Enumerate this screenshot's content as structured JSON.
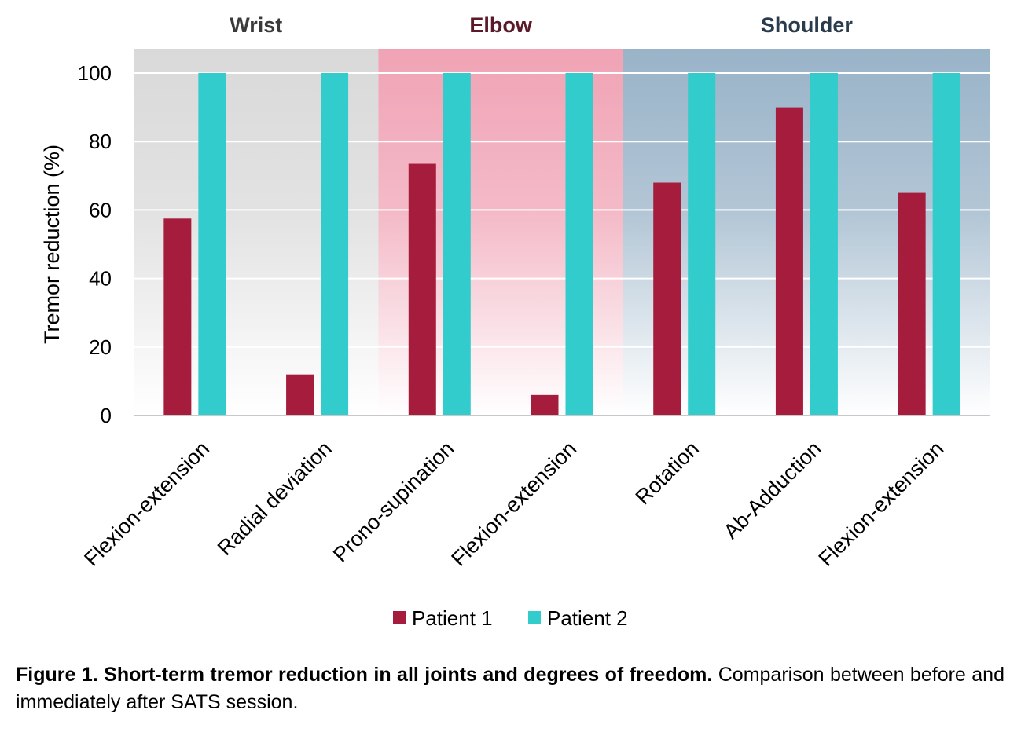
{
  "chart_data": {
    "type": "bar",
    "ylabel": "Tremor reduction (%)",
    "ylim": [
      0,
      100
    ],
    "yticks": [
      0,
      20,
      40,
      60,
      80,
      100
    ],
    "grid": true,
    "legend_position": "bottom",
    "groups": [
      {
        "name": "Wrist",
        "color": "#3a3a3a",
        "band_color": "#d9d9d9",
        "span": [
          0,
          1
        ]
      },
      {
        "name": "Elbow",
        "color": "#5a1a2a",
        "band_color": "#f0a3b5",
        "span": [
          2,
          3
        ]
      },
      {
        "name": "Shoulder",
        "color": "#2a3b4c",
        "band_color": "#99b3c8",
        "span": [
          4,
          6
        ]
      }
    ],
    "categories": [
      "Flexion-extension",
      "Radial deviation",
      "Prono-supination",
      "Flexion-extension",
      "Rotation",
      "Ab-Adduction",
      "Flexion-extension"
    ],
    "series": [
      {
        "name": "Patient 1",
        "color": "#a51c3c",
        "values": [
          57.5,
          12,
          73.5,
          6,
          68,
          90,
          65
        ]
      },
      {
        "name": "Patient 2",
        "color": "#33cccc",
        "values": [
          100,
          100,
          100,
          100,
          100,
          100,
          100
        ]
      }
    ]
  },
  "caption": {
    "bold": "Figure 1. Short-term tremor reduction in all joints and degrees of freedom.",
    "normal": " Comparison between before and immediately after SATS session."
  }
}
